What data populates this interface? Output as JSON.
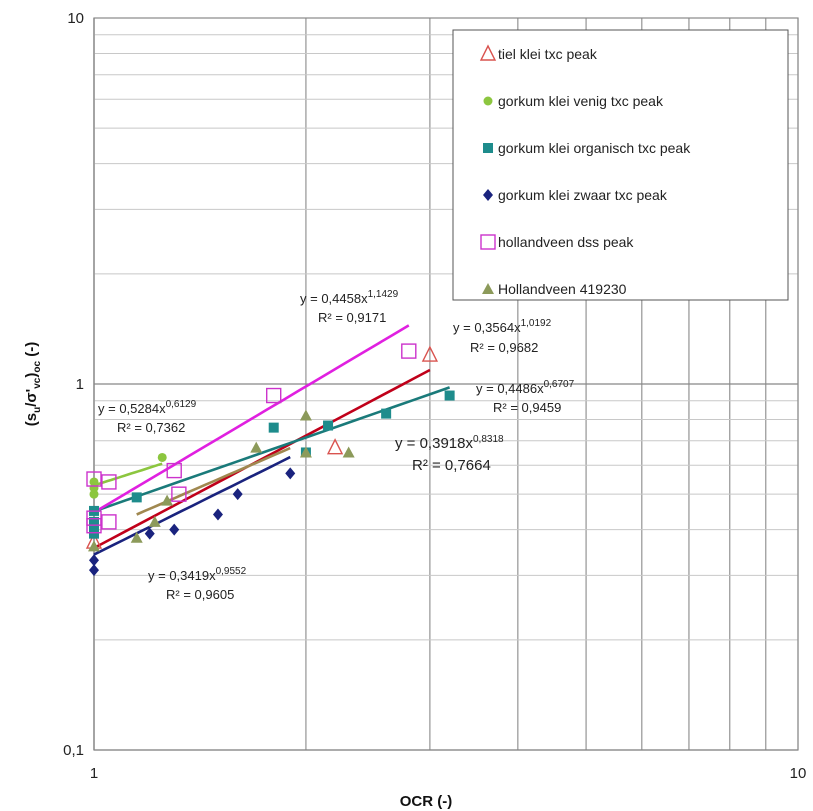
{
  "chart_data": {
    "type": "scatter",
    "xscale": "log",
    "yscale": "log",
    "xlim": [
      1,
      10
    ],
    "ylim": [
      0.1,
      10
    ],
    "xlabel": "OCR (-)",
    "ylabel_parts": {
      "a": "(s",
      "b": "u",
      "c": "/σ'",
      "d": "vc",
      "e": ")",
      "f": "oc",
      "g": " (-)"
    },
    "xticks": [
      {
        "value": 1,
        "label": "1"
      },
      {
        "value": 10,
        "label": "10"
      }
    ],
    "yticks": [
      {
        "value": 0.1,
        "label": "0,1"
      },
      {
        "value": 1,
        "label": "1"
      },
      {
        "value": 10,
        "label": "10"
      }
    ],
    "grid": true,
    "legend_position": "top-right",
    "series": [
      {
        "name": "tiel klei txc peak",
        "marker": "triangle-open",
        "color": "#d9534f",
        "line_color": "#c0001a",
        "points": [
          [
            1.0,
            0.37
          ],
          [
            2.2,
            0.67
          ],
          [
            3.0,
            1.2
          ]
        ],
        "fit": {
          "a": 0.3564,
          "b": 1.0192,
          "xrange": [
            1.0,
            3.0
          ],
          "equation_pre": "y = 0,3564x",
          "exponent": "1,0192",
          "r2": "R² = 0,9682"
        }
      },
      {
        "name": "gorkum klei venig txc peak",
        "marker": "circle",
        "color": "#8cc63f",
        "line_color": "#8cc63f",
        "points": [
          [
            1.0,
            0.54
          ],
          [
            1.0,
            0.5
          ],
          [
            1.0,
            0.52
          ],
          [
            1.25,
            0.63
          ]
        ],
        "fit": {
          "a": 0.5284,
          "b": 0.6129,
          "xrange": [
            1.0,
            1.25
          ],
          "equation_pre": "y = 0,5284x",
          "exponent": "0,6129",
          "r2": "R² = 0,7362"
        }
      },
      {
        "name": "gorkum klei organisch txc peak",
        "marker": "square",
        "color": "#1e8c8c",
        "line_color": "#1a7a7a",
        "points": [
          [
            1.0,
            0.45
          ],
          [
            1.0,
            0.42
          ],
          [
            1.0,
            0.4
          ],
          [
            1.0,
            0.39
          ],
          [
            1.15,
            0.49
          ],
          [
            1.8,
            0.76
          ],
          [
            2.0,
            0.65
          ],
          [
            2.15,
            0.77
          ],
          [
            2.6,
            0.83
          ],
          [
            3.2,
            0.93
          ]
        ],
        "fit": {
          "a": 0.4486,
          "b": 0.6707,
          "xrange": [
            1.0,
            3.2
          ],
          "equation_pre": "y = 0,4486x",
          "exponent": "0,6707",
          "r2": "R² = 0,9459"
        }
      },
      {
        "name": "gorkum klei zwaar txc peak",
        "marker": "diamond",
        "color": "#1a237e",
        "line_color": "#1a237e",
        "points": [
          [
            1.0,
            0.31
          ],
          [
            1.0,
            0.33
          ],
          [
            1.2,
            0.39
          ],
          [
            1.3,
            0.4
          ],
          [
            1.5,
            0.44
          ],
          [
            1.6,
            0.5
          ],
          [
            1.9,
            0.57
          ]
        ],
        "fit": {
          "a": 0.3419,
          "b": 0.9552,
          "xrange": [
            1.0,
            1.9
          ],
          "equation_pre": "y = 0,3419x",
          "exponent": "0,9552",
          "r2": "R² = 0,9605"
        }
      },
      {
        "name": "hollandveen dss peak",
        "marker": "square-open",
        "color": "#cc33cc",
        "line_color": "#e020e0",
        "points": [
          [
            1.0,
            0.55
          ],
          [
            1.0,
            0.43
          ],
          [
            1.0,
            0.41
          ],
          [
            1.05,
            0.42
          ],
          [
            1.05,
            0.54
          ],
          [
            1.3,
            0.58
          ],
          [
            1.32,
            0.5
          ],
          [
            1.8,
            0.93
          ],
          [
            2.8,
            1.23
          ]
        ],
        "fit": {
          "a": 0.4458,
          "b": 1.1429,
          "xrange": [
            1.0,
            2.8
          ],
          "equation_pre": "y = 0,4458x",
          "exponent": "1,1429",
          "r2": "R² = 0,9171"
        }
      },
      {
        "name": "Hollandveen 419230",
        "marker": "triangle",
        "color": "#8c9a5a",
        "line_color": "#a08850",
        "points": [
          [
            1.0,
            0.36
          ],
          [
            1.15,
            0.38
          ],
          [
            1.22,
            0.42
          ],
          [
            1.27,
            0.48
          ],
          [
            1.7,
            0.67
          ],
          [
            2.0,
            0.82
          ],
          [
            2.0,
            0.65
          ],
          [
            2.3,
            0.65
          ]
        ],
        "fit": {
          "a": 0.3918,
          "b": 0.8318,
          "xrange": [
            1.15,
            1.9
          ],
          "equation_pre": "y = 0,3918x",
          "exponent": "0,8318",
          "r2": "R² = 0,7664"
        }
      }
    ]
  }
}
